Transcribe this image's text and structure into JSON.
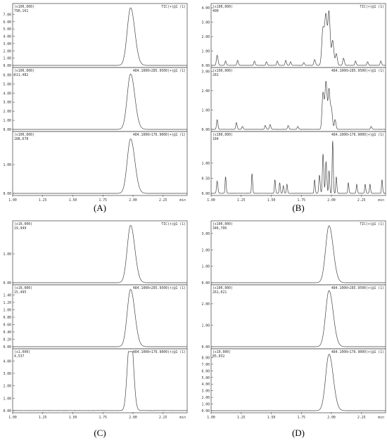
{
  "panels": [
    {
      "letter": "(A)",
      "x_ticks": [
        "1.00",
        "1.25",
        "1.50",
        "1.75",
        "2.00",
        "2.25"
      ],
      "x_unit": "min",
      "chart_data": [
        {
          "type": "line",
          "header": "(x100,000)",
          "value": "790,161",
          "trace_label": "TIC(+)@1 (1)",
          "yticks": [
            "0.00",
            "1.00",
            "2.00",
            "3.00",
            "4.00",
            "5.00",
            "6.00",
            "7.00"
          ],
          "ylim": [
            0,
            8.1
          ],
          "peaks": [
            {
              "rt": 1.98,
              "height": 7.9,
              "width": 0.028
            }
          ],
          "noise_level": 0
        },
        {
          "type": "line",
          "header": "(x100,000)",
          "value": "611,482",
          "trace_label": "484.1000>285.9500(+)@1 (1)",
          "yticks": [
            "0.00",
            "1.00",
            "2.00",
            "3.00",
            "4.00",
            "5.00",
            "6.00"
          ],
          "ylim": [
            0,
            6.5
          ],
          "peaks": [
            {
              "rt": 1.98,
              "height": 6.1,
              "width": 0.028
            }
          ],
          "noise_level": 0
        },
        {
          "type": "line",
          "header": "(x100,000)",
          "value": "188,678",
          "trace_label": "484.1000>176.9000(+)@1 (1)",
          "yticks": [
            "0.00",
            "1.00"
          ],
          "ylim": [
            0,
            2.05
          ],
          "peaks": [
            {
              "rt": 1.98,
              "height": 1.89,
              "width": 0.028
            }
          ],
          "noise_level": 0
        }
      ]
    },
    {
      "letter": "(B)",
      "x_ticks": [
        "1.00",
        "1.25",
        "1.50",
        "1.75",
        "2.00",
        "2.25"
      ],
      "x_unit": "min",
      "chart_data": [
        {
          "type": "line",
          "header": "(x100,000)",
          "value": "400",
          "trace_label": "TIC(+)@1 (1)",
          "yticks": [
            "0.00",
            "1.00",
            "2.00",
            "3.00",
            "4.00"
          ],
          "ylim": [
            0,
            4.1
          ],
          "peaks": [
            {
              "rt": 1.05,
              "height": 0.7,
              "width": 0.006
            },
            {
              "rt": 1.12,
              "height": 0.3,
              "width": 0.005
            },
            {
              "rt": 1.22,
              "height": 0.35,
              "width": 0.005
            },
            {
              "rt": 1.36,
              "height": 0.3,
              "width": 0.005
            },
            {
              "rt": 1.46,
              "height": 0.25,
              "width": 0.005
            },
            {
              "rt": 1.55,
              "height": 0.3,
              "width": 0.005
            },
            {
              "rt": 1.62,
              "height": 0.35,
              "width": 0.005
            },
            {
              "rt": 1.66,
              "height": 0.25,
              "width": 0.005
            },
            {
              "rt": 1.77,
              "height": 0.2,
              "width": 0.005
            },
            {
              "rt": 1.86,
              "height": 0.4,
              "width": 0.006
            },
            {
              "rt": 1.93,
              "height": 2.6,
              "width": 0.01
            },
            {
              "rt": 1.955,
              "height": 3.2,
              "width": 0.009
            },
            {
              "rt": 1.98,
              "height": 3.5,
              "width": 0.008
            },
            {
              "rt": 2.01,
              "height": 1.7,
              "width": 0.008
            },
            {
              "rt": 2.04,
              "height": 0.8,
              "width": 0.007
            },
            {
              "rt": 2.1,
              "height": 0.5,
              "width": 0.006
            },
            {
              "rt": 2.2,
              "height": 0.3,
              "width": 0.005
            },
            {
              "rt": 2.3,
              "height": 0.25,
              "width": 0.005
            },
            {
              "rt": 2.41,
              "height": 0.3,
              "width": 0.005
            }
          ],
          "noise_level": 0.05
        },
        {
          "type": "line",
          "header": "(x100,000)",
          "value": "281",
          "trace_label": "484.1000>285.9500(+)@1 (1)",
          "yticks": [
            "0.00",
            "1.00",
            "2.00",
            "3.00"
          ],
          "ylim": [
            0,
            3.05
          ],
          "peaks": [
            {
              "rt": 1.05,
              "height": 0.5,
              "width": 0.005
            },
            {
              "rt": 1.21,
              "height": 0.35,
              "width": 0.005
            },
            {
              "rt": 1.26,
              "height": 0.15,
              "width": 0.005
            },
            {
              "rt": 1.45,
              "height": 0.2,
              "width": 0.005
            },
            {
              "rt": 1.49,
              "height": 0.25,
              "width": 0.005
            },
            {
              "rt": 1.64,
              "height": 0.2,
              "width": 0.005
            },
            {
              "rt": 1.72,
              "height": 0.15,
              "width": 0.005
            },
            {
              "rt": 1.93,
              "height": 1.9,
              "width": 0.008
            },
            {
              "rt": 1.955,
              "height": 2.4,
              "width": 0.008
            },
            {
              "rt": 1.98,
              "height": 2.0,
              "width": 0.007
            },
            {
              "rt": 2.0,
              "height": 1.0,
              "width": 0.007
            },
            {
              "rt": 2.03,
              "height": 0.5,
              "width": 0.006
            },
            {
              "rt": 2.33,
              "height": 0.15,
              "width": 0.005
            }
          ],
          "noise_level": 0.04
        },
        {
          "type": "line",
          "header": "(x100,000)",
          "value": "184",
          "trace_label": "484.1000>176.9000(+)@1 (1)",
          "yticks": [
            "0.00",
            "0.50",
            "1.00"
          ],
          "ylim": [
            0,
            1.95
          ],
          "peaks": [
            {
              "rt": 1.05,
              "height": 0.4,
              "width": 0.005
            },
            {
              "rt": 1.12,
              "height": 0.55,
              "width": 0.004
            },
            {
              "rt": 1.34,
              "height": 0.65,
              "width": 0.004
            },
            {
              "rt": 1.53,
              "height": 0.45,
              "width": 0.004
            },
            {
              "rt": 1.57,
              "height": 0.35,
              "width": 0.004
            },
            {
              "rt": 1.6,
              "height": 0.25,
              "width": 0.004
            },
            {
              "rt": 1.63,
              "height": 0.3,
              "width": 0.004
            },
            {
              "rt": 1.86,
              "height": 0.45,
              "width": 0.004
            },
            {
              "rt": 1.9,
              "height": 0.6,
              "width": 0.005
            },
            {
              "rt": 1.93,
              "height": 1.3,
              "width": 0.005
            },
            {
              "rt": 1.955,
              "height": 1.05,
              "width": 0.005
            },
            {
              "rt": 1.98,
              "height": 0.75,
              "width": 0.004
            },
            {
              "rt": 2.01,
              "height": 1.75,
              "width": 0.004
            },
            {
              "rt": 2.04,
              "height": 0.55,
              "width": 0.004
            },
            {
              "rt": 2.14,
              "height": 0.35,
              "width": 0.004
            },
            {
              "rt": 2.21,
              "height": 0.3,
              "width": 0.004
            },
            {
              "rt": 2.28,
              "height": 0.3,
              "width": 0.004
            },
            {
              "rt": 2.32,
              "height": 0.3,
              "width": 0.004
            },
            {
              "rt": 2.42,
              "height": 0.45,
              "width": 0.004
            }
          ],
          "noise_level": 0.05
        }
      ]
    },
    {
      "letter": "(C)",
      "x_ticks": [
        "1.00",
        "1.25",
        "1.50",
        "1.75",
        "2.00",
        "2.25"
      ],
      "x_unit": "min",
      "chart_data": [
        {
          "type": "line",
          "header": "(x10,000)",
          "value": "19,949",
          "trace_label": "TIC(+)@1 (1)",
          "yticks": [
            "0.00",
            "1.00"
          ],
          "ylim": [
            0,
            2.05
          ],
          "peaks": [
            {
              "rt": 1.98,
              "height": 1.99,
              "width": 0.028
            }
          ],
          "noise_level": 0
        },
        {
          "type": "line",
          "header": "(x10,000)",
          "value": "15,495",
          "trace_label": "484.1000>285.9500(+)@1 (1)",
          "yticks": [
            "0.00",
            "0.20",
            "0.40",
            "0.60",
            "0.80",
            "1.00",
            "1.20",
            "1.40"
          ],
          "ylim": [
            0,
            1.6
          ],
          "peaks": [
            {
              "rt": 1.98,
              "height": 1.55,
              "width": 0.028
            }
          ],
          "noise_level": 0
        },
        {
          "type": "line",
          "header": "(x1,000)",
          "value": "4,537",
          "trace_label": "484.1000>176.9000(+)@1 (1)",
          "yticks": [
            "0.00",
            "1.00",
            "2.00",
            "3.00",
            "4.00"
          ],
          "ylim": [
            0,
            4.75
          ],
          "peaks": [
            {
              "rt": 1.965,
              "height": 4.2,
              "width": 0.018
            },
            {
              "rt": 1.99,
              "height": 3.6,
              "width": 0.016
            }
          ],
          "noise_level": 0.06
        }
      ]
    },
    {
      "letter": "(D)",
      "x_ticks": [
        "1.00",
        "1.25",
        "1.50",
        "1.75",
        "2.00",
        "2.25"
      ],
      "x_unit": "min",
      "chart_data": [
        {
          "type": "line",
          "header": "(x100,000)",
          "value": "346,706",
          "trace_label": "TIC(+)@1 (1)",
          "yticks": [
            "0.00",
            "1.00",
            "2.00",
            "3.00"
          ],
          "ylim": [
            0,
            3.6
          ],
          "peaks": [
            {
              "rt": 1.98,
              "height": 3.47,
              "width": 0.028
            }
          ],
          "noise_level": 0
        },
        {
          "type": "line",
          "header": "(x100,000)",
          "value": "261,021",
          "trace_label": "484.1000>285.9500(+)@1 (1)",
          "yticks": [
            "0.00",
            "1.00",
            "2.00"
          ],
          "ylim": [
            0,
            2.75
          ],
          "peaks": [
            {
              "rt": 1.98,
              "height": 2.61,
              "width": 0.028
            }
          ],
          "noise_level": 0
        },
        {
          "type": "line",
          "header": "(x10,000)",
          "value": "85,032",
          "trace_label": "484.1000>176.9000(+)@1 (1)",
          "yticks": [
            "0.00",
            "1.00",
            "2.00",
            "3.00",
            "4.00",
            "5.00",
            "6.00",
            "7.00",
            "8.00"
          ],
          "ylim": [
            0,
            8.9
          ],
          "peaks": [
            {
              "rt": 1.98,
              "height": 8.5,
              "width": 0.028
            }
          ],
          "noise_level": 0
        }
      ]
    }
  ]
}
